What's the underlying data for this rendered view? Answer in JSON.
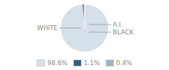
{
  "chart_data": {
    "type": "pie",
    "categories": [
      "WHITE",
      "BLACK",
      "A.I."
    ],
    "values": [
      98.6,
      1.1,
      0.4
    ],
    "value_labels": [
      "98.6%",
      "1.1%",
      "0.4%"
    ],
    "colors": [
      "#d6e0ea",
      "#2d5f8a",
      "#a0b4c4"
    ],
    "legend": "bottom"
  }
}
